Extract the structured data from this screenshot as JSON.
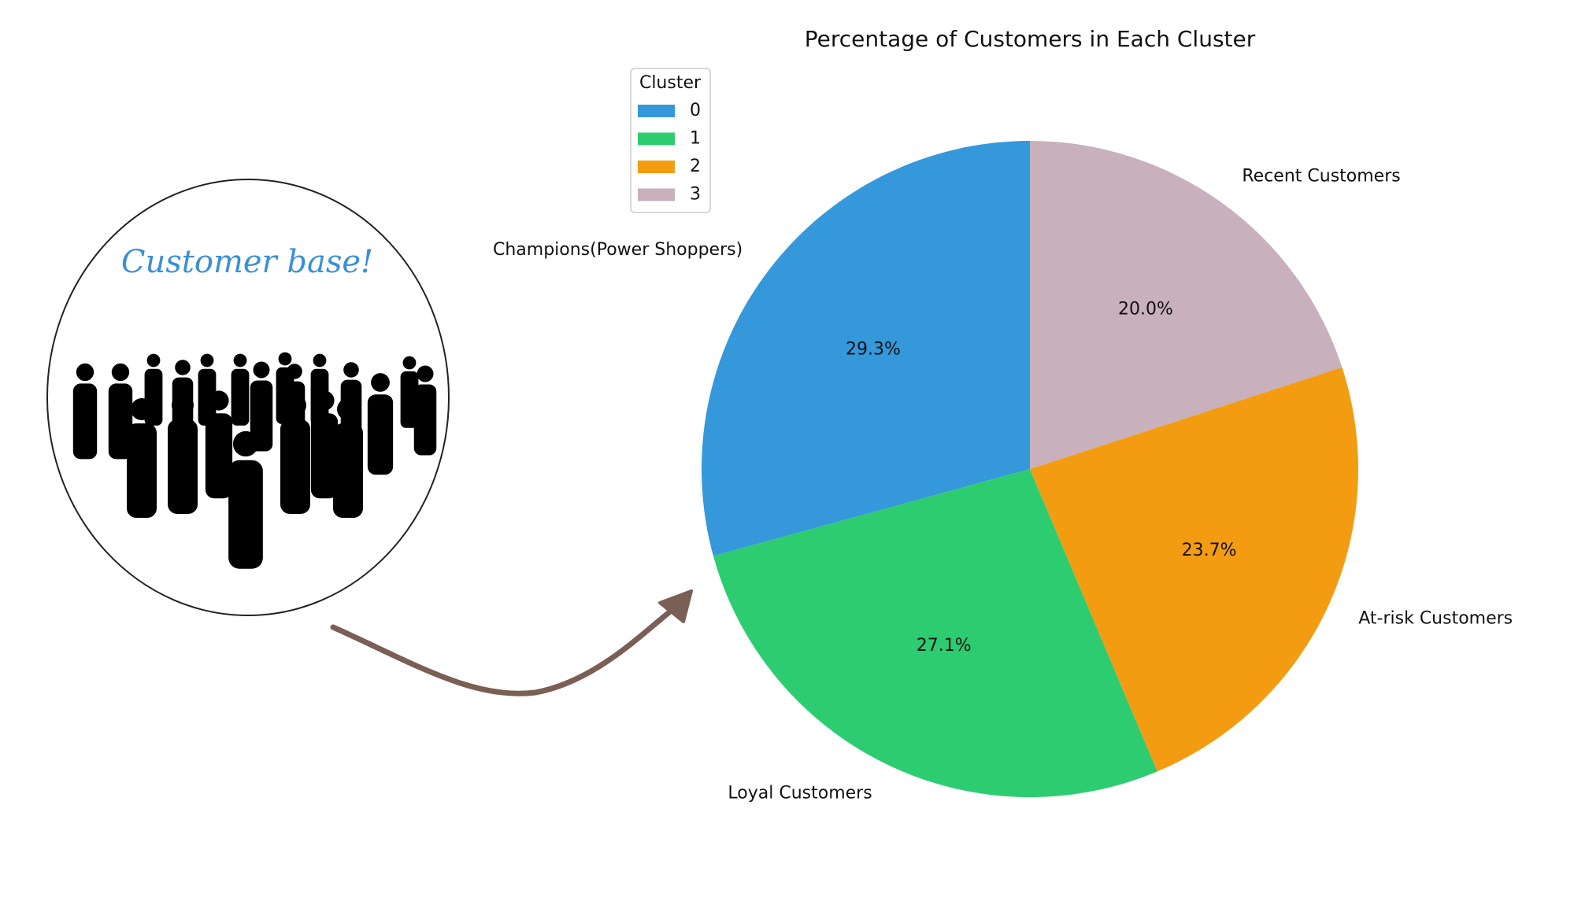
{
  "illustration": {
    "caption": "Customer base!"
  },
  "chart_data": {
    "type": "pie",
    "title": "Percentage of Customers in Each Cluster",
    "categories": [
      "Champions(Power Shoppers)",
      "Loyal Customers",
      "At-risk Customers",
      "Recent Customers"
    ],
    "values": [
      29.3,
      27.1,
      23.7,
      20.0
    ],
    "value_labels": [
      "29.3%",
      "27.1%",
      "23.7%",
      "20.0%"
    ],
    "colors": [
      "#3498db",
      "#2ecc71",
      "#f39c12",
      "#c8b0bc"
    ],
    "legend": {
      "title": "Cluster",
      "labels": [
        "0",
        "1",
        "2",
        "3"
      ],
      "position": "upper left"
    }
  }
}
